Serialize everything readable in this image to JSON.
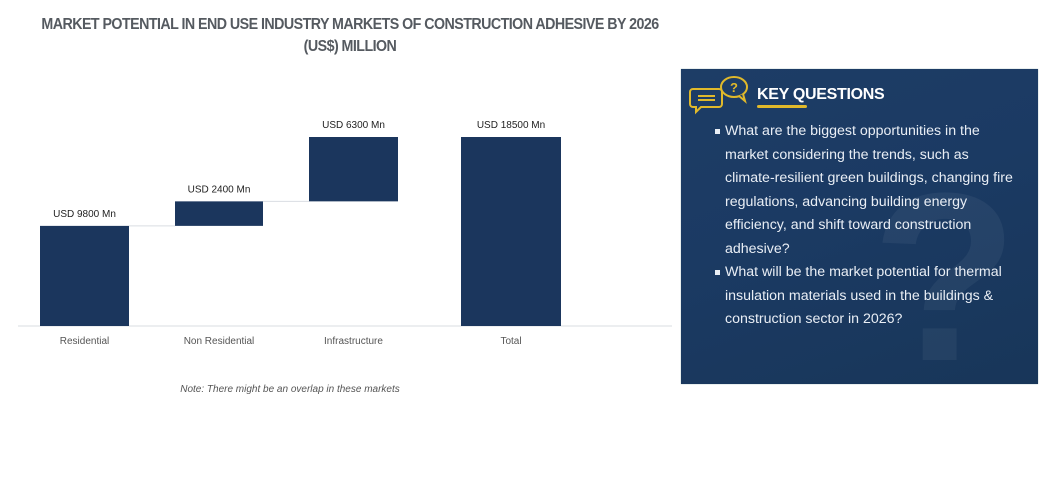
{
  "title": "MARKET POTENTIAL IN END USE INDUSTRY MARKETS OF CONSTRUCTION ADHESIVE BY 2026 (US$) MILLION",
  "note": "Note: There might be an overlap in these markets",
  "colors": {
    "bar": "#1b365d",
    "panel": "#1d3d66",
    "accent": "#e0b92b",
    "connector": "#d9dde2"
  },
  "chart_data": {
    "type": "bar",
    "subtype": "waterfall",
    "title": "MARKET POTENTIAL IN END USE INDUSTRY MARKETS OF CONSTRUCTION ADHESIVE BY 2026 (US$) MILLION",
    "categories": [
      "Residential",
      "Non Residential",
      "Infrastructure",
      "Total"
    ],
    "values": [
      9800,
      2400,
      6300,
      18500
    ],
    "is_total": [
      false,
      false,
      false,
      true
    ],
    "data_labels": [
      "USD 9800 Mn",
      "USD 2400 Mn",
      "USD 6300 Mn",
      "USD 18500 Mn"
    ],
    "unit": "USD Mn",
    "xlabel": "",
    "ylabel": "",
    "ylim": [
      0,
      18500
    ],
    "grid": false,
    "legend": "none"
  },
  "key_questions": {
    "icon": "chat-question-icon",
    "heading": "KEY QUESTIONS",
    "items": [
      "What are the biggest opportunities in the market considering the trends, such as climate-resilient green buildings, changing fire regulations, advancing building energy efficiency, and shift toward construction adhesive?",
      "What will be the market potential for thermal insulation materials used in the buildings & construction sector in 2026?"
    ]
  }
}
